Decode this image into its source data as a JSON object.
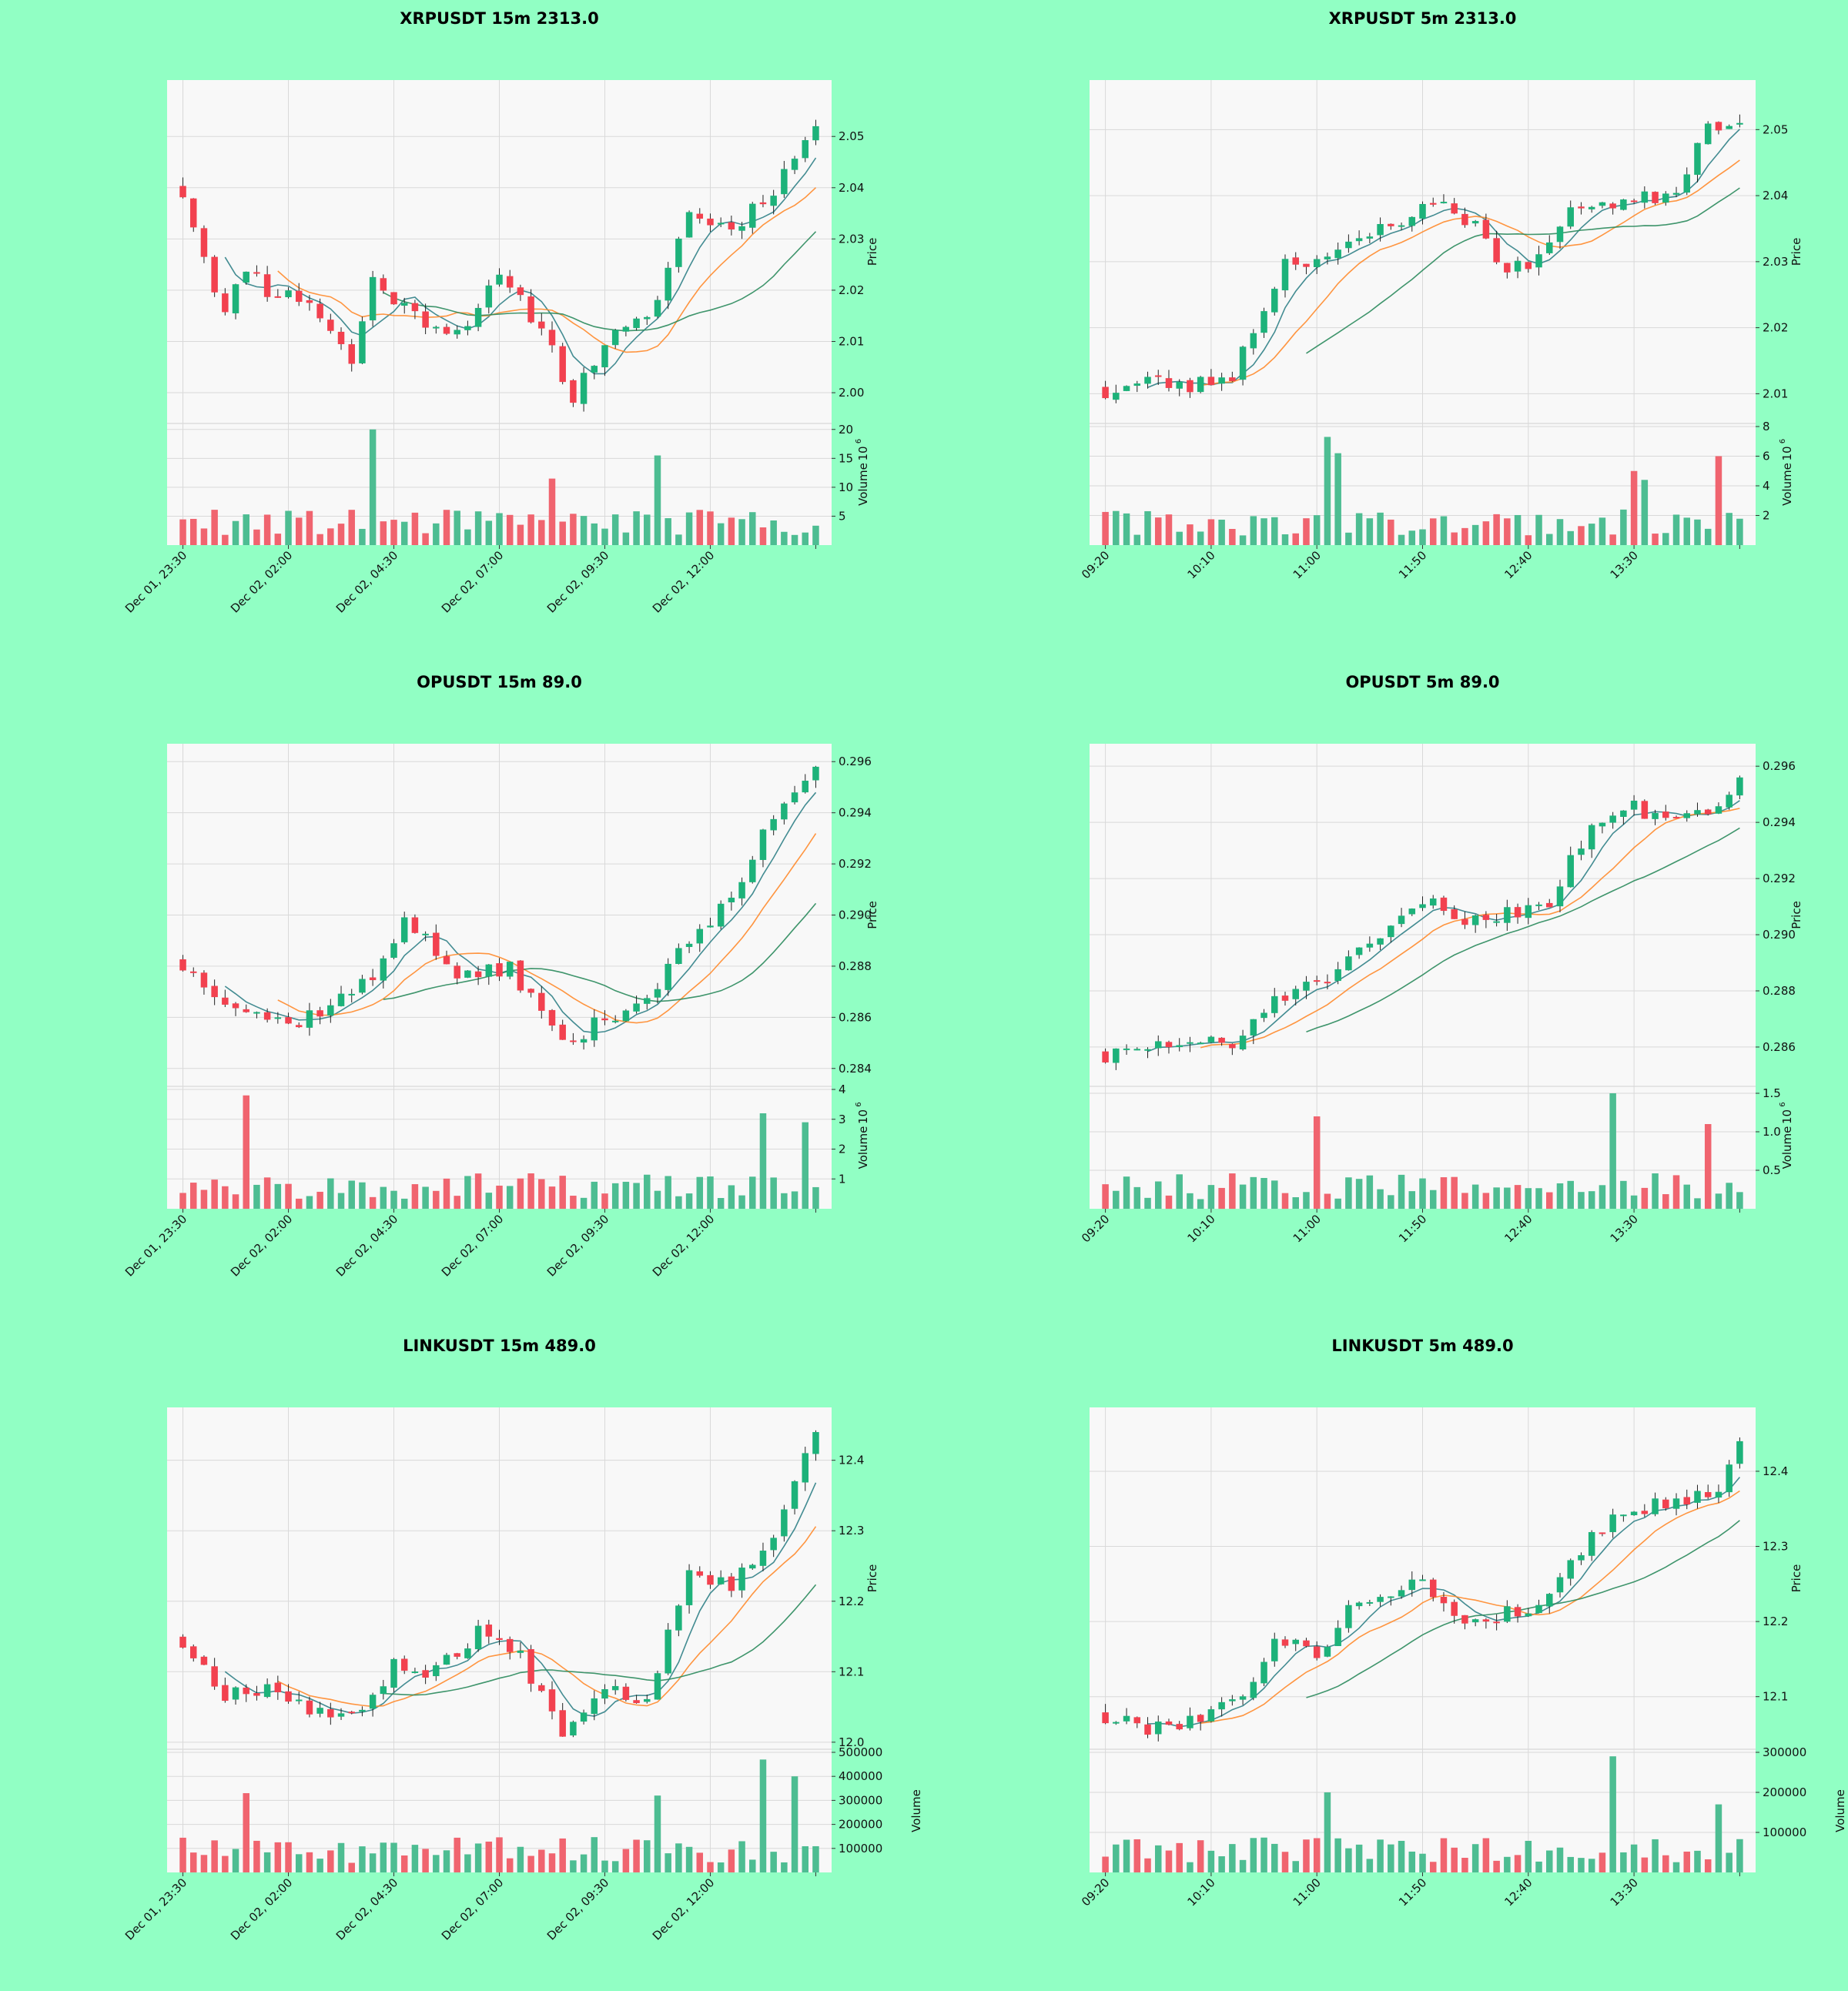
{
  "colors": {
    "background": "#91ffc4",
    "panel": "#f8f8f8",
    "grid": "#d9d9d9",
    "up": "#1db27a",
    "down": "#f2414f",
    "volume_up": "#4dbd92",
    "volume_down": "#f0646f",
    "ma_short": "#2f7f86",
    "ma_mid": "#ff8a2b",
    "ma_long": "#2a8a5c"
  },
  "chart_data": [
    {
      "type": "candlestick",
      "title": "XRPUSDT 15m 2313.0",
      "ylabel": "Price",
      "volume_label": "Volume",
      "volume_exponent": "6",
      "ylim": [
        1.994,
        2.061
      ],
      "yticks": [
        2.0,
        2.01,
        2.02,
        2.03,
        2.04,
        2.05
      ],
      "ytick_labels": [
        "2.00",
        "2.01",
        "2.02",
        "2.03",
        "2.04",
        "2.05"
      ],
      "vlim": [
        0,
        20.5
      ],
      "vticks": [
        5,
        10,
        15,
        20
      ],
      "vtick_labels": [
        "5",
        "10",
        "15",
        "20"
      ],
      "xtick_labels": [
        "Dec 01, 23:30",
        "Dec 02, 02:00",
        "Dec 02, 04:30",
        "Dec 02, 07:00",
        "Dec 02, 09:30",
        "Dec 02, 12:00"
      ],
      "xtick_index": [
        0,
        10,
        20,
        30,
        40,
        50
      ],
      "ohlc": {
        "start": 2.039,
        "end": 2.052,
        "amp": 0.0125,
        "base": 0.0,
        "vol_amp": 7.0,
        "seed": 11,
        "shape": [
          [
            0,
            2.039
          ],
          [
            4,
            2.015
          ],
          [
            6,
            2.025
          ],
          [
            8,
            2.02
          ],
          [
            12,
            2.018
          ],
          [
            16,
            2.006
          ],
          [
            18,
            2.022
          ],
          [
            22,
            2.015
          ],
          [
            26,
            2.012
          ],
          [
            30,
            2.022
          ],
          [
            34,
            2.013
          ],
          [
            37,
            1.999
          ],
          [
            40,
            2.01
          ],
          [
            44,
            2.014
          ],
          [
            48,
            2.035
          ],
          [
            52,
            2.032
          ],
          [
            56,
            2.04
          ],
          [
            60,
            2.052
          ]
        ]
      },
      "n": 61,
      "spikes": [
        {
          "i": 18,
          "v": 20.0
        },
        {
          "i": 45,
          "v": 15.5
        },
        {
          "i": 35,
          "v": 11.5
        }
      ]
    },
    {
      "type": "candlestick",
      "title": "XRPUSDT 5m 2313.0",
      "ylabel": "Price",
      "volume_label": "Volume",
      "volume_exponent": "6",
      "ylim": [
        2.0055,
        2.0575
      ],
      "yticks": [
        2.01,
        2.02,
        2.03,
        2.04,
        2.05
      ],
      "ytick_labels": [
        "2.01",
        "2.02",
        "2.03",
        "2.04",
        "2.05"
      ],
      "vlim": [
        0,
        8
      ],
      "vticks": [
        2,
        4,
        6,
        8
      ],
      "vtick_labels": [
        "2",
        "4",
        "6",
        "8"
      ],
      "xtick_labels": [
        "09:20",
        "10:10",
        "11:00",
        "11:50",
        "12:40",
        "13:30"
      ],
      "xtick_index": [
        0,
        10,
        20,
        30,
        40,
        50
      ],
      "ohlc": {
        "start": 2.01,
        "end": 2.051,
        "seed": 23,
        "shape": [
          [
            0,
            2.01
          ],
          [
            4,
            2.012
          ],
          [
            8,
            2.011
          ],
          [
            12,
            2.013
          ],
          [
            17,
            2.03
          ],
          [
            22,
            2.031
          ],
          [
            27,
            2.036
          ],
          [
            32,
            2.039
          ],
          [
            36,
            2.034
          ],
          [
            38,
            2.028
          ],
          [
            41,
            2.031
          ],
          [
            45,
            2.039
          ],
          [
            50,
            2.039
          ],
          [
            54,
            2.041
          ],
          [
            57,
            2.051
          ],
          [
            60,
            2.051
          ]
        ]
      },
      "n": 61,
      "spikes": [
        {
          "i": 21,
          "v": 7.3
        },
        {
          "i": 22,
          "v": 6.2
        },
        {
          "i": 50,
          "v": 5.0
        },
        {
          "i": 51,
          "v": 4.4
        },
        {
          "i": 58,
          "v": 6.0
        }
      ]
    },
    {
      "type": "candlestick",
      "title": "OPUSDT 15m 89.0",
      "ylabel": "Price",
      "volume_label": "Volume",
      "volume_exponent": "6",
      "ylim": [
        0.2833,
        0.2967
      ],
      "yticks": [
        0.284,
        0.286,
        0.288,
        0.29,
        0.292,
        0.294,
        0.296
      ],
      "ytick_labels": [
        "0.284",
        "0.286",
        "0.288",
        "0.290",
        "0.292",
        "0.294",
        "0.296"
      ],
      "vlim": [
        0,
        4
      ],
      "vticks": [
        1,
        2,
        3,
        4
      ],
      "vtick_labels": [
        "1",
        "2",
        "3",
        "4"
      ],
      "xtick_labels": [
        "Dec 01, 23:30",
        "Dec 02, 02:00",
        "Dec 02, 04:30",
        "Dec 02, 07:00",
        "Dec 02, 09:30",
        "Dec 02, 12:00"
      ],
      "xtick_index": [
        0,
        10,
        20,
        30,
        40,
        50
      ],
      "ohlc": {
        "start": 0.288,
        "end": 0.2958,
        "seed": 37,
        "shape": [
          [
            0,
            0.288
          ],
          [
            5,
            0.2865
          ],
          [
            10,
            0.2857
          ],
          [
            14,
            0.2865
          ],
          [
            18,
            0.2875
          ],
          [
            21,
            0.29
          ],
          [
            25,
            0.288
          ],
          [
            27,
            0.2875
          ],
          [
            31,
            0.288
          ],
          [
            35,
            0.2855
          ],
          [
            37,
            0.285
          ],
          [
            40,
            0.286
          ],
          [
            44,
            0.2868
          ],
          [
            48,
            0.289
          ],
          [
            52,
            0.2905
          ],
          [
            56,
            0.294
          ],
          [
            60,
            0.2958
          ]
        ]
      },
      "n": 61,
      "spikes": [
        {
          "i": 6,
          "v": 3.8
        },
        {
          "i": 55,
          "v": 3.2
        },
        {
          "i": 59,
          "v": 2.9
        }
      ]
    },
    {
      "type": "candlestick",
      "title": "OPUSDT 5m 89.0",
      "ylabel": "Price",
      "volume_label": "Volume",
      "volume_exponent": "6",
      "ylim": [
        0.2846,
        0.2968
      ],
      "yticks": [
        0.286,
        0.288,
        0.29,
        0.292,
        0.294,
        0.296
      ],
      "ytick_labels": [
        "0.286",
        "0.288",
        "0.290",
        "0.292",
        "0.294",
        "0.296"
      ],
      "vlim": [
        0,
        1.55
      ],
      "vticks": [
        0.5,
        1.0,
        1.5
      ],
      "vtick_labels": [
        "0.5",
        "1.0",
        "1.5"
      ],
      "xtick_labels": [
        "09:20",
        "10:10",
        "11:00",
        "11:50",
        "12:40",
        "13:30"
      ],
      "xtick_index": [
        0,
        10,
        20,
        30,
        40,
        50
      ],
      "ohlc": {
        "start": 0.2856,
        "end": 0.2956,
        "seed": 51,
        "shape": [
          [
            0,
            0.2856
          ],
          [
            4,
            0.286
          ],
          [
            8,
            0.2862
          ],
          [
            12,
            0.286
          ],
          [
            16,
            0.2878
          ],
          [
            20,
            0.2882
          ],
          [
            25,
            0.2895
          ],
          [
            30,
            0.2912
          ],
          [
            34,
            0.2905
          ],
          [
            38,
            0.2908
          ],
          [
            42,
            0.2912
          ],
          [
            46,
            0.294
          ],
          [
            50,
            0.2945
          ],
          [
            54,
            0.2942
          ],
          [
            58,
            0.2945
          ],
          [
            60,
            0.2956
          ]
        ]
      },
      "n": 61,
      "spikes": [
        {
          "i": 20,
          "v": 1.2
        },
        {
          "i": 48,
          "v": 1.5
        },
        {
          "i": 57,
          "v": 1.1
        }
      ]
    },
    {
      "type": "candlestick",
      "title": "LINKUSDT 15m 489.0",
      "ylabel": "Price",
      "volume_label": "Volume",
      "volume_exponent": "",
      "ylim": [
        11.99,
        12.475
      ],
      "yticks": [
        12.0,
        12.1,
        12.2,
        12.3,
        12.4
      ],
      "ytick_labels": [
        "12.0",
        "12.1",
        "12.2",
        "12.3",
        "12.4"
      ],
      "vlim": [
        0,
        500000
      ],
      "vticks": [
        100000,
        200000,
        300000,
        400000,
        500000
      ],
      "vtick_labels": [
        "100000",
        "200000",
        "300000",
        "400000",
        "500000"
      ],
      "xtick_labels": [
        "Dec 01, 23:30",
        "Dec 02, 02:00",
        "Dec 02, 04:30",
        "Dec 02, 07:00",
        "Dec 02, 09:30",
        "Dec 02, 12:00"
      ],
      "xtick_index": [
        0,
        10,
        20,
        30,
        40,
        50
      ],
      "ohlc": {
        "start": 12.14,
        "end": 12.44,
        "seed": 67,
        "shape": [
          [
            0,
            12.14
          ],
          [
            4,
            12.07
          ],
          [
            8,
            12.08
          ],
          [
            12,
            12.05
          ],
          [
            16,
            12.03
          ],
          [
            20,
            12.11
          ],
          [
            24,
            12.1
          ],
          [
            28,
            12.16
          ],
          [
            32,
            12.12
          ],
          [
            36,
            12.02
          ],
          [
            40,
            12.08
          ],
          [
            44,
            12.06
          ],
          [
            48,
            12.25
          ],
          [
            52,
            12.22
          ],
          [
            56,
            12.3
          ],
          [
            60,
            12.44
          ]
        ]
      },
      "n": 61,
      "spikes": [
        {
          "i": 6,
          "v": 330000
        },
        {
          "i": 45,
          "v": 320000
        },
        {
          "i": 55,
          "v": 470000
        },
        {
          "i": 58,
          "v": 400000
        }
      ]
    },
    {
      "type": "candlestick",
      "title": "LINKUSDT 5m 489.0",
      "ylabel": "Price",
      "volume_label": "Volume",
      "volume_exponent": "",
      "ylim": [
        12.03,
        12.485
      ],
      "yticks": [
        12.1,
        12.2,
        12.3,
        12.4
      ],
      "ytick_labels": [
        "12.1",
        "12.2",
        "12.3",
        "12.4"
      ],
      "vlim": [
        0,
        300000
      ],
      "vticks": [
        100000,
        200000,
        300000
      ],
      "vtick_labels": [
        "100000",
        "200000",
        "300000"
      ],
      "xtick_labels": [
        "09:20",
        "10:10",
        "11:00",
        "11:50",
        "12:40",
        "13:30"
      ],
      "xtick_index": [
        0,
        10,
        20,
        30,
        40,
        50
      ],
      "ohlc": {
        "start": 12.07,
        "end": 12.44,
        "seed": 79,
        "shape": [
          [
            0,
            12.07
          ],
          [
            4,
            12.06
          ],
          [
            8,
            12.07
          ],
          [
            12,
            12.09
          ],
          [
            16,
            12.17
          ],
          [
            20,
            12.16
          ],
          [
            24,
            12.23
          ],
          [
            30,
            12.25
          ],
          [
            34,
            12.2
          ],
          [
            38,
            12.21
          ],
          [
            42,
            12.23
          ],
          [
            46,
            12.32
          ],
          [
            50,
            12.35
          ],
          [
            54,
            12.36
          ],
          [
            58,
            12.38
          ],
          [
            60,
            12.44
          ]
        ]
      },
      "n": 61,
      "spikes": [
        {
          "i": 21,
          "v": 200000
        },
        {
          "i": 48,
          "v": 290000
        },
        {
          "i": 58,
          "v": 170000
        }
      ]
    }
  ]
}
